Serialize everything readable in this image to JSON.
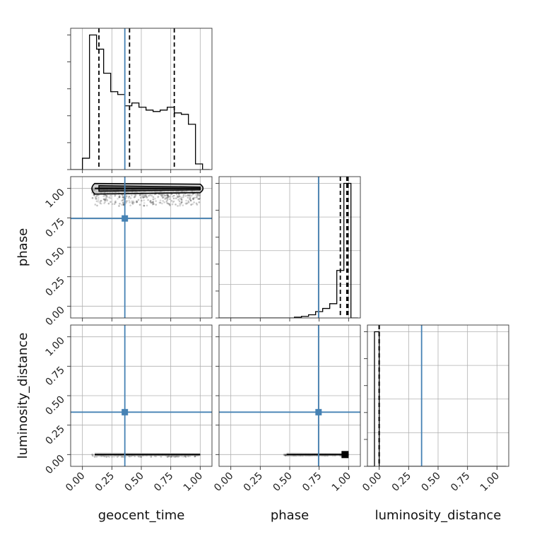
{
  "chart_data": {
    "type": "corner",
    "parameters": [
      "geocent_time",
      "phase",
      "luminosity_distance"
    ],
    "axis_labels": {
      "geocent_time": "geocent_time",
      "phase": "phase",
      "luminosity_distance": "luminosity_distance"
    },
    "ranges": {
      "geocent_time": [
        -0.1,
        1.1
      ],
      "phase": [
        -0.1,
        1.1
      ],
      "luminosity_distance": [
        -0.1,
        1.1
      ]
    },
    "ticks": [
      0.0,
      0.25,
      0.5,
      0.75,
      1.0
    ],
    "tick_labels": [
      "0.00",
      "0.25",
      "0.50",
      "0.75",
      "1.00"
    ],
    "truths": {
      "geocent_time": 0.36,
      "phase": 0.745,
      "luminosity_distance": 0.36
    },
    "truth_color": "#4682b4",
    "grid": true,
    "histograms": {
      "geocent_time": {
        "bin_edges": [
          -0.1,
          -0.04,
          0.0,
          0.06,
          0.12,
          0.18,
          0.24,
          0.3,
          0.36,
          0.42,
          0.48,
          0.54,
          0.6,
          0.66,
          0.72,
          0.78,
          0.84,
          0.9,
          0.96,
          1.02,
          1.08
        ],
        "counts": [
          0,
          0,
          8,
          95,
          85,
          68,
          55,
          53,
          45,
          47,
          44,
          42,
          41,
          42,
          44,
          40,
          39,
          32,
          4,
          0
        ]
      },
      "phase": {
        "bin_edges": [
          -0.1,
          -0.04,
          0.0,
          0.06,
          0.12,
          0.18,
          0.24,
          0.3,
          0.36,
          0.42,
          0.48,
          0.54,
          0.6,
          0.66,
          0.72,
          0.78,
          0.84,
          0.9,
          0.96,
          1.02,
          1.08
        ],
        "counts": [
          0,
          0,
          0,
          0,
          0,
          0,
          0,
          0,
          0,
          0,
          0,
          0.5,
          1,
          2,
          4,
          6,
          9,
          30,
          85,
          0
        ]
      },
      "luminosity_distance": {
        "bin_edges": [
          -0.1,
          -0.04,
          0.0,
          0.06,
          0.12,
          0.18,
          0.24,
          0.3,
          0.36,
          0.42,
          0.48,
          0.54,
          0.6,
          0.66,
          0.72,
          0.78,
          0.84,
          0.9,
          0.96,
          1.02,
          1.08
        ],
        "counts": [
          0,
          1,
          0,
          0,
          0,
          0,
          0,
          0,
          0,
          0,
          0,
          0,
          0,
          0,
          0,
          0,
          0,
          0,
          0,
          0
        ]
      }
    },
    "quantiles": {
      "geocent_time": [
        0.14,
        0.4,
        0.78
      ],
      "phase": [
        0.93,
        0.985,
        0.995
      ],
      "luminosity_distance": [
        0.0,
        0.0,
        0.0
      ]
    },
    "scatter_panels": [
      {
        "x": "geocent_time",
        "y": "phase",
        "y_center": 1.0,
        "y_spread": 0.15,
        "x_extent": [
          0.08,
          1.0
        ]
      },
      {
        "x": "geocent_time",
        "y": "luminosity_distance",
        "y_center": 0.0,
        "y_spread": 0.02,
        "x_extent": [
          0.08,
          1.0
        ]
      },
      {
        "x": "phase",
        "y": "luminosity_distance",
        "y_center": 0.0,
        "y_spread": 0.01,
        "x_extent": [
          0.45,
          1.0
        ]
      }
    ]
  }
}
